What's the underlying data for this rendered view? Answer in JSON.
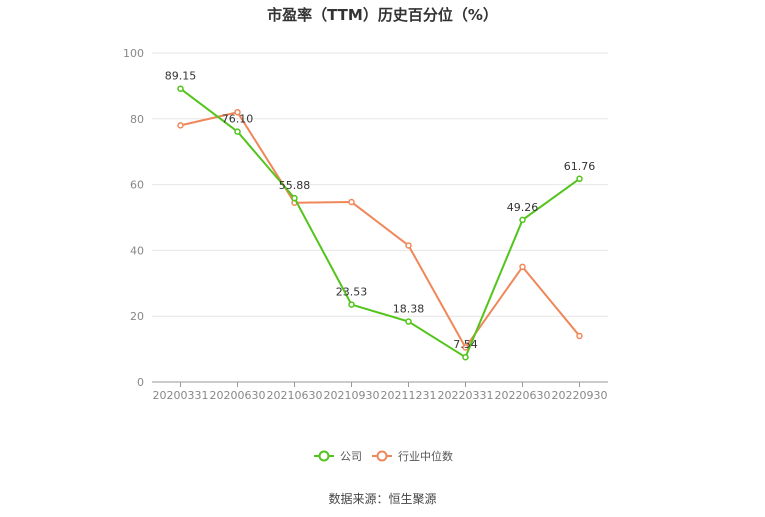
{
  "chart_data": {
    "type": "line",
    "title": "市盈率（TTM）历史百分位（%）",
    "categories": [
      "20200331",
      "20200630",
      "20210630",
      "20210930",
      "20211231",
      "20220331",
      "20220630",
      "20220930"
    ],
    "ylim": [
      0,
      100
    ],
    "yticks": [
      0,
      20,
      40,
      60,
      80,
      100
    ],
    "grid": true,
    "legend_position": "bottom",
    "series": [
      {
        "name": "公司",
        "color": "#52c41a",
        "values": [
          89.15,
          76.1,
          55.88,
          23.53,
          18.38,
          7.54,
          49.26,
          61.76
        ],
        "labels": [
          "89.15",
          "76.10",
          "55.88",
          "23.53",
          "18.38",
          "7.54",
          "49.26",
          "61.76"
        ]
      },
      {
        "name": "行业中位数",
        "color": "#f0875a",
        "values": [
          78.0,
          82.0,
          54.5,
          54.7,
          41.5,
          10.5,
          35.0,
          14.0
        ]
      }
    ]
  },
  "footer": {
    "source": "数据来源：恒生聚源"
  }
}
